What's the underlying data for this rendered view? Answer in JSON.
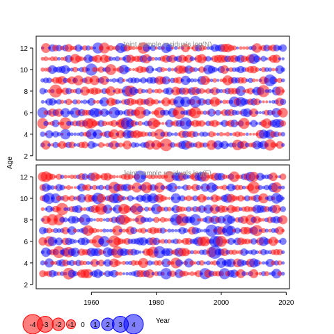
{
  "chart_data": {
    "type": "scatter",
    "xlabel": "Year",
    "ylabel": "Age",
    "xlim": [
      1943,
      2021
    ],
    "x_ticks": [
      1960,
      1980,
      2000,
      2020
    ],
    "years": [
      1945,
      2019
    ],
    "ages": [
      3,
      4,
      5,
      6,
      7,
      8,
      9,
      10,
      11,
      12
    ],
    "legend": {
      "values": [
        -4,
        -3,
        -2,
        -1,
        0,
        1,
        2,
        3,
        4
      ],
      "labels": [
        "-4",
        "-3",
        "-2",
        "-1",
        "0",
        "1",
        "2",
        "3",
        "4"
      ],
      "placement": "bottom-left"
    },
    "colors": {
      "negative": "#ff0000",
      "positive": "#0000ff",
      "alpha": 0.5
    },
    "panels": [
      {
        "title": "Joint sample residuals log(N)",
        "ylim": [
          1.6,
          13.1
        ],
        "y_ticks": [
          2,
          4,
          6,
          8,
          10,
          12
        ]
      },
      {
        "title": "Joint sample residuals log(F)",
        "ylim": [
          1.6,
          13.1
        ],
        "y_ticks": [
          2,
          4,
          6,
          8,
          10,
          12
        ]
      }
    ]
  }
}
